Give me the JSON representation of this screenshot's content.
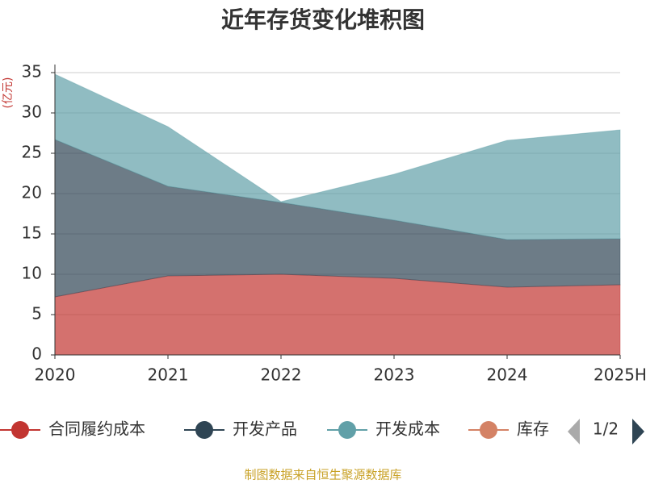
{
  "chart_data": {
    "type": "stacked_area",
    "title": "近年存货变化堆积图",
    "y_label": "(亿元)",
    "categories": [
      "2020",
      "2021",
      "2022",
      "2023",
      "2024",
      "2025H"
    ],
    "series": [
      {
        "name": "合同履约成本",
        "color": "#c23531",
        "values": [
          7.2,
          9.8,
          10.0,
          9.5,
          8.4,
          8.7
        ]
      },
      {
        "name": "开发产品",
        "color": "#2f4554",
        "values": [
          19.5,
          11.1,
          8.9,
          7.2,
          5.9,
          5.7
        ]
      },
      {
        "name": "开发成本",
        "color": "#61a0a8",
        "values": [
          8.1,
          7.4,
          0.1,
          5.7,
          12.3,
          13.5
        ]
      },
      {
        "name": "库存",
        "color": "#d48265",
        "values": [
          null,
          null,
          null,
          null,
          null,
          null
        ]
      }
    ],
    "ylim": [
      0,
      35
    ],
    "yticks": [
      0,
      5,
      10,
      15,
      20,
      25,
      30,
      35
    ],
    "grid": true,
    "legend_position": "bottom",
    "legend_page": "1/2",
    "source": "制图数据来自恒生聚源数据库"
  }
}
